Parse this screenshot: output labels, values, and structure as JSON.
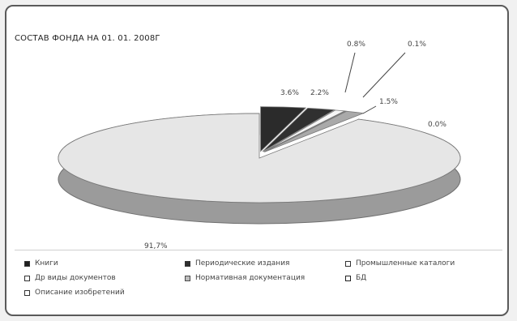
{
  "chart_data": {
    "type": "pie",
    "title": "СОСТАВ ФОНДА НА 01. 01. 2008Г",
    "slices": [
      {
        "name": "Книги",
        "value": 3.6,
        "label": "3.6%",
        "color": "#2b2b2b"
      },
      {
        "name": "Периодические издания",
        "value": 2.2,
        "label": "2.2%",
        "color": "#303030"
      },
      {
        "name": "Промышленные каталоги",
        "value": 0.8,
        "label": "0.8%",
        "color": "#f6f6f6"
      },
      {
        "name": "Др. виды документов",
        "value": 0.1,
        "label": "0.1%",
        "color": "#f0f0f0"
      },
      {
        "name": "Нормативная документация",
        "value": 1.5,
        "label": "1.5%",
        "color": "#a9a9a9"
      },
      {
        "name": "БД",
        "value": 0.0,
        "label": "0.0%",
        "color": "#555555"
      },
      {
        "name": "Описание изобретений",
        "value": 91.7,
        "label": "91,7%",
        "color": "#e6e6e6"
      }
    ],
    "legend_placement": "bottom"
  },
  "legend_labels": [
    "Книги",
    "Периодические издания",
    "Промышленные каталоги",
    "Др  виды документов",
    "Нормативная документация",
    "БД",
    "Описание изобретений"
  ],
  "colors": {
    "books": "#2b2b2b",
    "periodicals": "#303030",
    "catalogs": "#f6f6f6",
    "other_docs": "#f0f0f0",
    "normative": "#a9a9a9",
    "db": "#555555",
    "inventions": "#e6e6e6"
  }
}
